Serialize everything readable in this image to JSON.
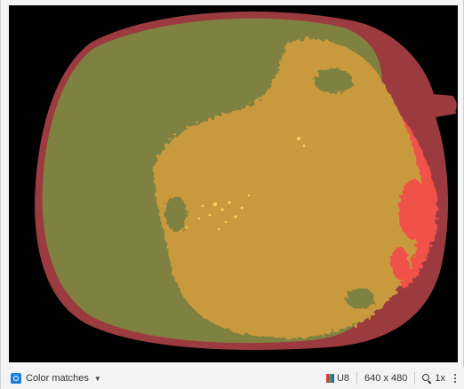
{
  "colors": {
    "background": "#000000",
    "outer_rim": "#9c3b3f",
    "olive_region": "#7f8140",
    "gold_region": "#c99a3c",
    "red_region": "#f0514a",
    "yellow_specks": "#f2d35a",
    "accent_blue": "#1d7fd8"
  },
  "statusbar": {
    "mode_label": "Color matches",
    "mode_icon": "color-match-icon",
    "type_label": "U8",
    "type_icon": "rgb-channels-icon",
    "resolution": "640 x 480",
    "zoom": "1x",
    "zoom_icon": "magnifier-icon",
    "more_icon": "kebab-menu-icon"
  }
}
